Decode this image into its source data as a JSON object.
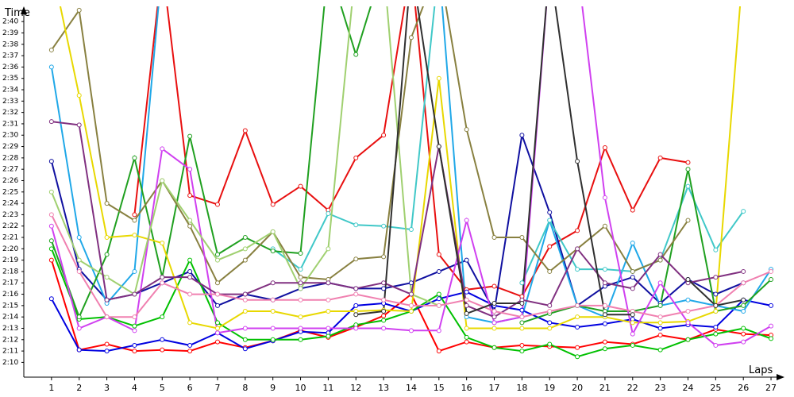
{
  "chart_data": {
    "type": "line",
    "y_label": "Time",
    "x_label": "Laps",
    "x": [
      1,
      2,
      3,
      4,
      5,
      6,
      7,
      8,
      9,
      10,
      11,
      12,
      13,
      14,
      15,
      16,
      17,
      18,
      19,
      20,
      21,
      22,
      23,
      24,
      25,
      26,
      27
    ],
    "xlim": [
      0,
      27.4
    ],
    "xticks": [
      1,
      2,
      3,
      4,
      5,
      6,
      7,
      8,
      9,
      10,
      11,
      12,
      13,
      14,
      15,
      16,
      17,
      18,
      19,
      20,
      21,
      22,
      23,
      24,
      25,
      26,
      27
    ],
    "ylim": [
      128.7,
      161.2
    ],
    "yticks": [
      {
        "value": 130,
        "label": "2:10"
      },
      {
        "value": 131,
        "label": "2:11"
      },
      {
        "value": 132,
        "label": "2:12"
      },
      {
        "value": 133,
        "label": "2:13"
      },
      {
        "value": 134,
        "label": "2:14"
      },
      {
        "value": 135,
        "label": "2:15"
      },
      {
        "value": 136,
        "label": "2:16"
      },
      {
        "value": 137,
        "label": "2:17"
      },
      {
        "value": 138,
        "label": "2:18"
      },
      {
        "value": 139,
        "label": "2:19"
      },
      {
        "value": 140,
        "label": "2:20"
      },
      {
        "value": 141,
        "label": "2:21"
      },
      {
        "value": 142,
        "label": "2:22"
      },
      {
        "value": 143,
        "label": "2:23"
      },
      {
        "value": 144,
        "label": "2:24"
      },
      {
        "value": 145,
        "label": "2:25"
      },
      {
        "value": 146,
        "label": "2:26"
      },
      {
        "value": 147,
        "label": "2:27"
      },
      {
        "value": 148,
        "label": "2:28"
      },
      {
        "value": 149,
        "label": "2:29"
      },
      {
        "value": 150,
        "label": "2:30"
      },
      {
        "value": 151,
        "label": "2:31"
      },
      {
        "value": 152,
        "label": "2:32"
      },
      {
        "value": 153,
        "label": "2:33"
      },
      {
        "value": 154,
        "label": "2:34"
      },
      {
        "value": 155,
        "label": "2:35"
      },
      {
        "value": 156,
        "label": "2:36"
      },
      {
        "value": 157,
        "label": "2:37"
      },
      {
        "value": 158,
        "label": "2:38"
      },
      {
        "value": 159,
        "label": "2:39"
      },
      {
        "value": 160,
        "label": "2:40"
      }
    ],
    "grid": false,
    "series": [
      {
        "color": "#ff0000",
        "values": [
          139,
          131.1,
          131.6,
          131,
          131.1,
          131,
          131.8,
          131.3,
          131.9,
          132.8,
          132.2,
          133.1,
          134.1,
          136,
          131,
          131.8,
          131.3,
          131.5,
          131.4,
          131.3,
          131.8,
          131.6,
          132.4,
          132,
          132.9,
          132.5,
          132.4
        ]
      },
      {
        "color": "#e81010",
        "values": [
          null,
          null,
          null,
          143,
          165,
          144.7,
          143.9,
          150.4,
          143.9,
          145.5,
          143.4,
          148,
          150,
          165,
          139.5,
          136.4,
          136.7,
          135.8,
          140.2,
          141.6,
          148.9,
          143.4,
          148,
          147.6,
          null,
          null,
          null
        ]
      },
      {
        "color": "#0000e0",
        "values": [
          135.6,
          131.1,
          131,
          131.5,
          132,
          131.5,
          132.6,
          131.2,
          131.9,
          132.7,
          132.6,
          135,
          135.2,
          134.5,
          135.6,
          136.2,
          135,
          134.6,
          133.5,
          133.1,
          133.4,
          133.8,
          133,
          133.3,
          133.1,
          135.5,
          135
        ]
      },
      {
        "color": "#1010a0",
        "values": [
          147.7,
          138.2,
          135.5,
          136,
          137,
          138,
          135,
          136,
          135.5,
          136.5,
          137,
          136.5,
          136.5,
          137,
          138,
          139,
          134.5,
          150,
          143.2,
          135,
          136.7,
          137.5,
          135.2,
          137.3,
          136,
          137,
          null
        ]
      },
      {
        "color": "#20a8e8",
        "values": [
          156,
          141,
          135.2,
          138,
          165,
          null,
          null,
          null,
          null,
          null,
          null,
          null,
          null,
          null,
          165,
          134,
          133.5,
          134,
          142.5,
          135,
          134,
          140.5,
          135,
          135.5,
          135,
          134.5,
          138.2
        ]
      },
      {
        "color": "#40c8c8",
        "values": [
          null,
          null,
          null,
          null,
          null,
          null,
          null,
          null,
          140,
          138.2,
          143.1,
          142.1,
          142,
          141.7,
          165,
          null,
          null,
          137,
          142.5,
          138.2,
          138.2,
          138,
          139,
          145.5,
          139.9,
          143.3,
          null
        ]
      },
      {
        "color": "#00c000",
        "values": [
          140,
          133.8,
          134,
          133.2,
          134,
          139,
          133.5,
          132,
          132,
          132,
          132.3,
          133.3,
          133.7,
          134.5,
          136,
          132.2,
          131.3,
          131,
          131.6,
          130.5,
          131.2,
          131.5,
          131.1,
          132,
          132.5,
          133,
          132.1
        ]
      },
      {
        "color": "#20a020",
        "values": [
          140.7,
          134,
          139.5,
          148,
          137.5,
          149.9,
          139.5,
          141,
          139.8,
          139.6,
          165,
          157.1,
          165,
          null,
          null,
          null,
          null,
          133.5,
          134.3,
          135,
          134.5,
          134.5,
          135,
          147,
          134.5,
          135,
          137.3
        ]
      },
      {
        "color": "#888040",
        "values": [
          157.5,
          161,
          144,
          142.5,
          146,
          142,
          137,
          139,
          141.5,
          137.5,
          137.3,
          139.1,
          139.3,
          158.6,
          165,
          150.5,
          141,
          141,
          138,
          140,
          142,
          138,
          139,
          142.5,
          null,
          null,
          null
        ]
      },
      {
        "color": "#e8d800",
        "values": [
          165,
          153.5,
          141,
          141.2,
          140.5,
          133.5,
          133,
          134.5,
          134.5,
          134,
          134.5,
          134.5,
          134.6,
          134.5,
          155,
          133,
          133,
          133,
          133,
          134,
          134,
          133.5,
          133.5,
          133.6,
          134.5,
          165,
          null
        ]
      },
      {
        "color": "#d040f0",
        "values": [
          142,
          133,
          134,
          132.8,
          148.8,
          147,
          132.6,
          133,
          133,
          133,
          133,
          133,
          133,
          132.8,
          132.8,
          142.5,
          133.5,
          134,
          165,
          165,
          144.5,
          132.5,
          137,
          133.5,
          131.5,
          131.8,
          133.2
        ]
      },
      {
        "color": "#a0d070",
        "values": [
          145,
          139,
          137.5,
          136,
          146,
          142.5,
          139,
          140,
          141.5,
          136.5,
          140,
          165,
          165,
          136,
          135,
          null,
          null,
          null,
          null,
          null,
          null,
          null,
          null,
          null,
          null,
          null,
          null
        ]
      },
      {
        "color": "#803080",
        "values": [
          151.2,
          150.9,
          135.5,
          136,
          137.5,
          137.5,
          136,
          136,
          137,
          137,
          137,
          136.5,
          137,
          136,
          149,
          135,
          134,
          135.5,
          135,
          140,
          137,
          136.5,
          139.5,
          137,
          137.5,
          138,
          null
        ]
      },
      {
        "color": "#f080b0",
        "values": [
          143,
          138,
          134,
          134,
          137,
          136,
          136,
          135.5,
          135.5,
          135.5,
          135.5,
          136,
          135.5,
          135,
          135,
          135.5,
          134.5,
          134,
          134.5,
          135,
          135,
          134.5,
          134,
          134.5,
          135,
          137,
          138
        ]
      },
      {
        "color": "#303030",
        "values": [
          null,
          null,
          null,
          null,
          null,
          null,
          null,
          null,
          null,
          null,
          null,
          134.2,
          134.5,
          165,
          149,
          134.3,
          135.2,
          135.2,
          165,
          147.7,
          134.2,
          134.2,
          null,
          137.3,
          135,
          135.5,
          null
        ]
      }
    ]
  }
}
